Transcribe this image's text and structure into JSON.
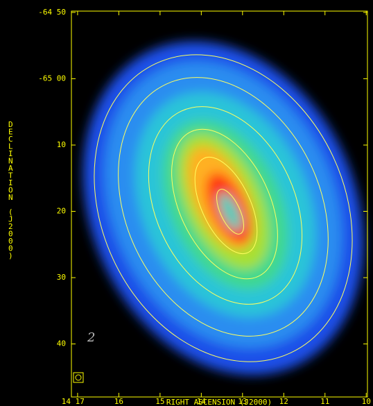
{
  "chart_data": {
    "type": "map",
    "xlabel": "RIGHT ASCENSION (J2000)",
    "ylabel": "DECLINATION (J2000)",
    "annotation": "2",
    "xlim": [
      17.15,
      9.97
    ],
    "xticks": [
      {
        "value": 17,
        "label": "14 17"
      },
      16,
      15,
      14,
      13,
      12,
      11,
      10
    ],
    "ylim": [
      -65.8,
      -64.83
    ],
    "yticks": [
      {
        "value": -64.8333,
        "label": "-64 50"
      },
      {
        "value": -65.0,
        "label": "-65 00"
      },
      {
        "value": -65.1667,
        "label": "10"
      },
      {
        "value": -65.3333,
        "label": "20"
      },
      {
        "value": -65.5,
        "label": "30"
      },
      {
        "value": -65.6667,
        "label": "40"
      }
    ],
    "color": "#ffff00"
  }
}
